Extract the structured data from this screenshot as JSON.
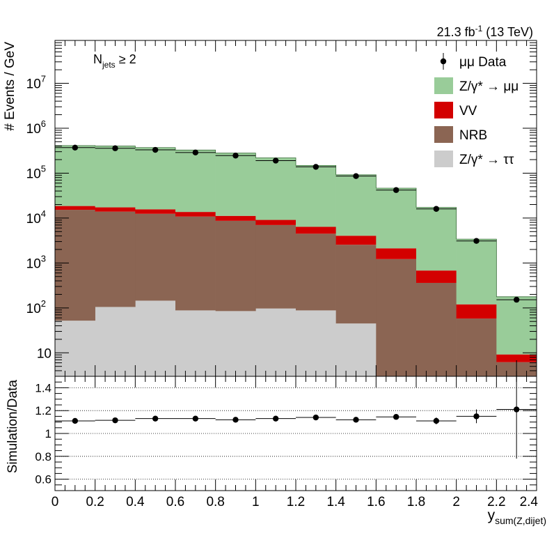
{
  "chart_data": [
    {
      "type": "bar",
      "stacked": true,
      "log_scale_y": true,
      "lumi_label": "21.3 fb",
      "lumi_sup": "-1",
      "lumi_energy": "(13 TeV)",
      "annotation_main": "N",
      "annotation_sub": "jets",
      "annotation_rel": "≥ 2",
      "ylabel": "# Events / GeV",
      "xlim": [
        0,
        2.4
      ],
      "ylim": [
        3,
        90000000
      ],
      "y_ticks": [
        {
          "value": 10,
          "label": "10",
          "sup": ""
        },
        {
          "value": 100,
          "label": "10",
          "sup": "2"
        },
        {
          "value": 1000,
          "label": "10",
          "sup": "3"
        },
        {
          "value": 10000,
          "label": "10",
          "sup": "4"
        },
        {
          "value": 100000,
          "label": "10",
          "sup": "5"
        },
        {
          "value": 1000000,
          "label": "10",
          "sup": "6"
        },
        {
          "value": 10000000,
          "label": "10",
          "sup": "7"
        }
      ],
      "bin_edges": [
        0,
        0.2,
        0.4,
        0.6,
        0.8,
        1.0,
        1.2,
        1.4,
        1.6,
        1.8,
        2.0,
        2.2,
        2.4
      ],
      "series": [
        {
          "name": "Z/γ* → ττ",
          "key": "ztt",
          "color": "#cccccc",
          "values": [
            52,
            105,
            145,
            88,
            85,
            97,
            88,
            45,
            0,
            0,
            0,
            0
          ]
        },
        {
          "name": "NRB",
          "key": "nrb",
          "color": "#8b6553",
          "values": [
            15200,
            13800,
            12300,
            10700,
            8600,
            6900,
            4400,
            2500,
            1220,
            360,
            58,
            6.2
          ]
        },
        {
          "name": "VV",
          "key": "vv",
          "color": "#d30000",
          "values": [
            3300,
            3400,
            3200,
            2900,
            2500,
            2100,
            1900,
            1500,
            900,
            320,
            62,
            3.0
          ]
        },
        {
          "name": "Z/γ* → μμ",
          "key": "zmm",
          "color": "#99cc99",
          "values": [
            392000,
            384000,
            355000,
            313000,
            268000,
            210000,
            142000,
            88000,
            44200,
            16600,
            3280,
            168
          ]
        }
      ],
      "data": {
        "name": "μμ Data",
        "x": [
          0.1,
          0.3,
          0.5,
          0.7,
          0.9,
          1.1,
          1.3,
          1.5,
          1.7,
          1.9,
          2.1,
          2.3
        ],
        "y": [
          370000,
          358000,
          330000,
          288000,
          246000,
          190000,
          138000,
          86000,
          42000,
          16000,
          3100,
          152
        ]
      },
      "legend_position": "top-right"
    },
    {
      "type": "scatter",
      "ylabel": "Simulation/Data",
      "xlabel": "y",
      "xlabel_sub": "sum(Z,dijet)",
      "xlim": [
        0,
        2.4
      ],
      "ylim": [
        0.5,
        1.5
      ],
      "grid_y": [
        0.6,
        0.8,
        1.0,
        1.2,
        1.4
      ],
      "y_tick_labels": [
        "0.6",
        "0.8",
        "1",
        "1.2",
        "1.4"
      ],
      "x_tick_labels": [
        "0",
        "0.2",
        "0.4",
        "0.6",
        "0.8",
        "1",
        "1.2",
        "1.4",
        "1.6",
        "1.8",
        "2",
        "2.2",
        "2.4"
      ],
      "x": [
        0.1,
        0.3,
        0.5,
        0.7,
        0.9,
        1.1,
        1.3,
        1.5,
        1.7,
        1.9,
        2.1,
        2.3
      ],
      "y": [
        1.11,
        1.115,
        1.13,
        1.13,
        1.12,
        1.13,
        1.14,
        1.12,
        1.145,
        1.11,
        1.15,
        1.21
      ],
      "yerr": [
        0.003,
        0.003,
        0.003,
        0.003,
        0.003,
        0.004,
        0.005,
        0.006,
        0.01,
        0.03,
        0.06,
        0.43
      ]
    }
  ]
}
